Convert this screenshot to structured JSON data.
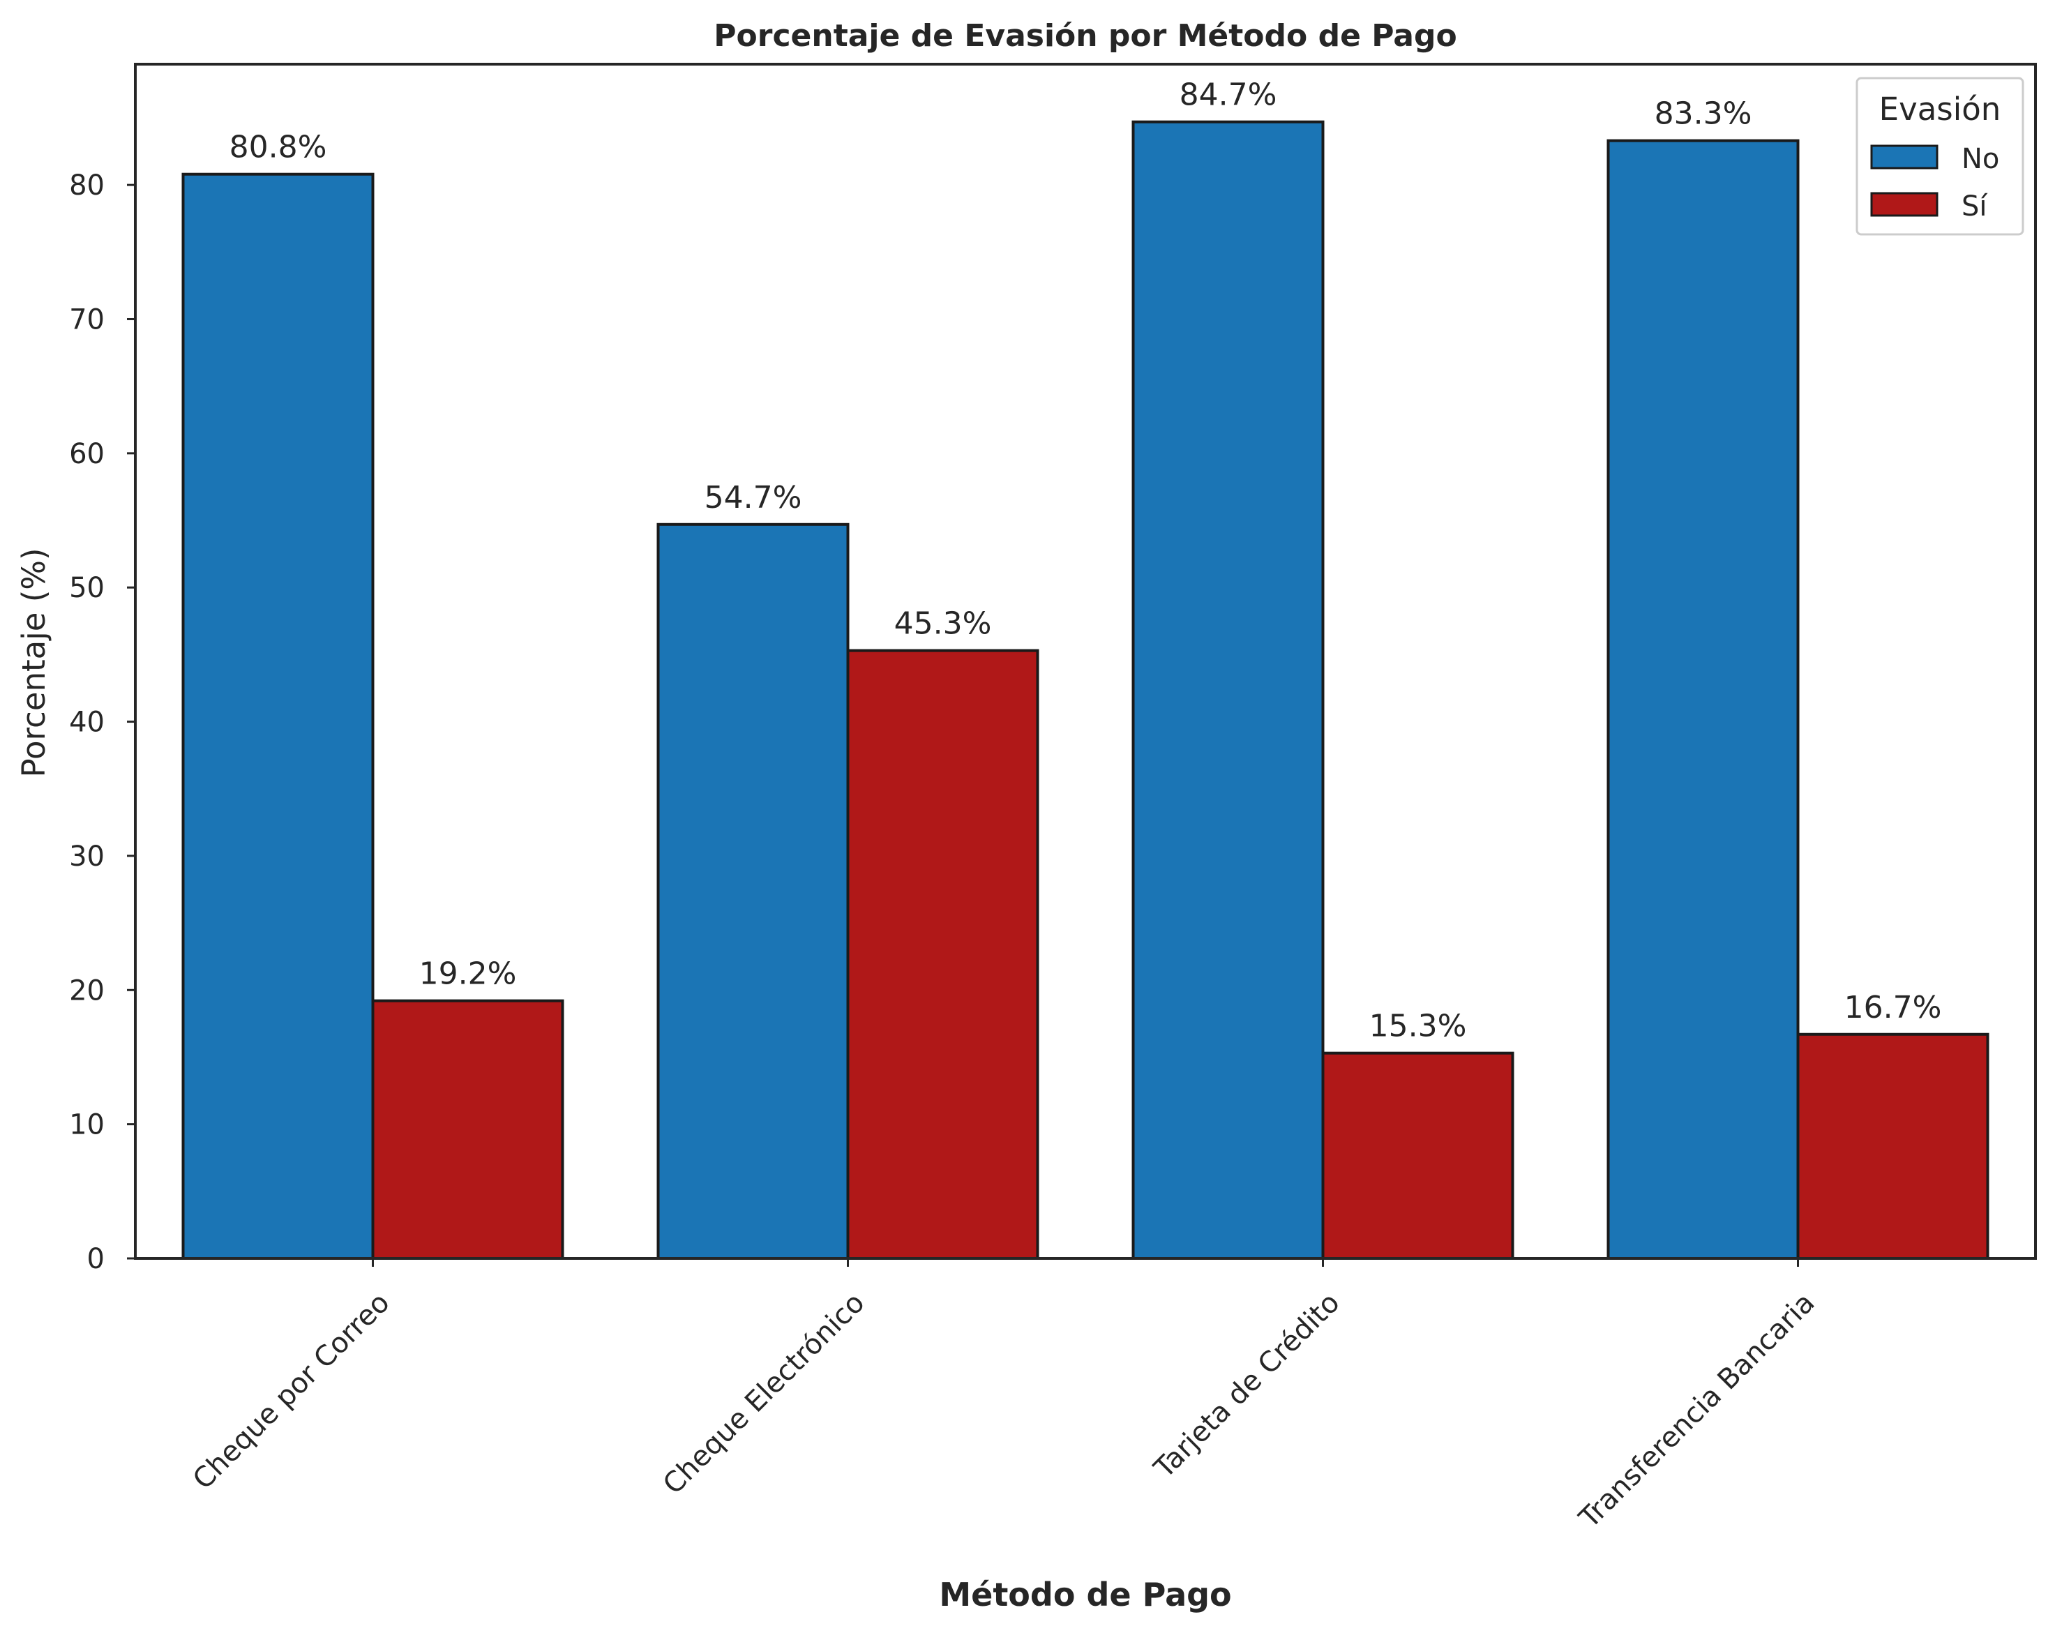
{
  "chart_data": {
    "type": "bar",
    "title": "Porcentaje de Evasión por Método de Pago",
    "xlabel": "Método de Pago",
    "ylabel": "Porcentaje (%)",
    "categories": [
      "Cheque por Correo",
      "Cheque Electrónico",
      "Tarjeta de Crédito",
      "Transferencia Bancaria"
    ],
    "series": [
      {
        "name": "No",
        "values": [
          80.8,
          54.7,
          84.7,
          83.3
        ],
        "labels": [
          "80.8%",
          "54.7%",
          "84.7%",
          "83.3%"
        ],
        "color": "#1b75b5"
      },
      {
        "name": "Sí",
        "values": [
          19.2,
          45.3,
          15.3,
          16.7
        ],
        "labels": [
          "19.2%",
          "45.3%",
          "15.3%",
          "16.7%"
        ],
        "color": "#b01818"
      }
    ],
    "ylim": [
      0,
      89
    ],
    "yticks": [
      0,
      10,
      20,
      30,
      40,
      50,
      60,
      70,
      80
    ],
    "legend": {
      "title": "Evasión",
      "position": "top-right"
    },
    "grid": false
  }
}
